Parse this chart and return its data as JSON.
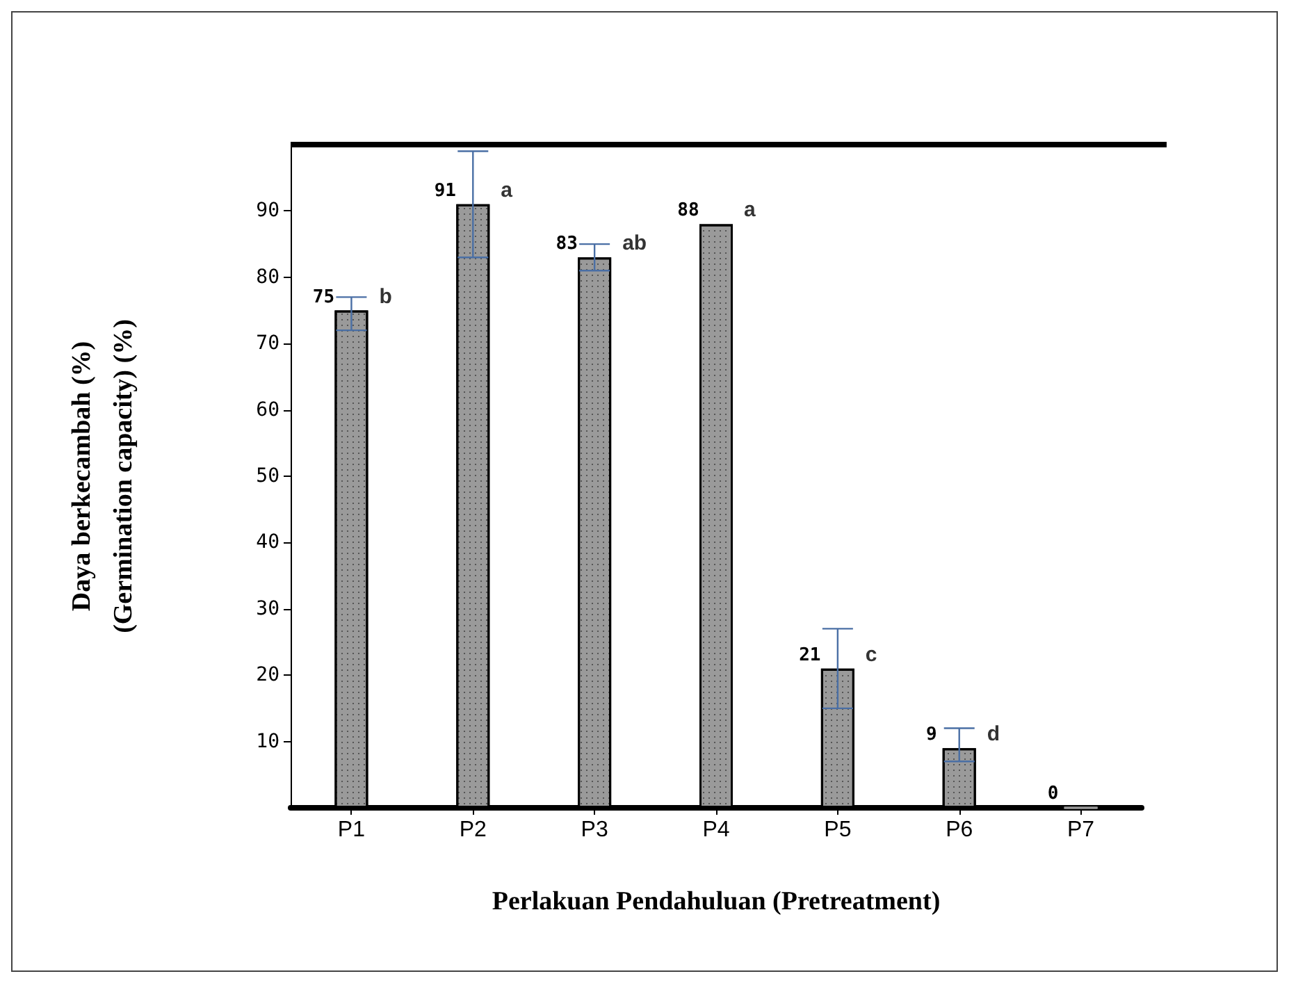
{
  "chart_data": {
    "type": "bar",
    "xlabel": "Perlakuan Pendahuluan (Pretreatment)",
    "ylabel": "Daya berkecambah (%)\n(Germination capacity) (%)",
    "categories": [
      "P1",
      "P2",
      "P3",
      "P4",
      "P5",
      "P6",
      "P7"
    ],
    "values": [
      75,
      91,
      83,
      88,
      21,
      9,
      0
    ],
    "color": "#9a9a9a",
    "errors": [
      [
        72,
        77
      ],
      [
        83,
        99
      ],
      [
        81,
        85
      ],
      null,
      [
        15,
        27
      ],
      [
        7,
        12
      ],
      null
    ],
    "data_labels": true,
    "annotations": [
      {
        "text": "b",
        "x": "P1",
        "y": 75
      },
      {
        "text": "a",
        "x": "P2",
        "y": 91
      },
      {
        "text": "ab",
        "x": "P3",
        "y": 83
      },
      {
        "text": "a",
        "x": "P4",
        "y": 88
      },
      {
        "text": "c",
        "x": "P5",
        "y": 21
      },
      {
        "text": "d",
        "x": "P6",
        "y": 9
      }
    ],
    "ylim": [
      0,
      100
    ],
    "yticks": [
      10,
      20,
      30,
      40,
      50,
      60,
      70,
      80,
      90
    ],
    "grid": false
  }
}
